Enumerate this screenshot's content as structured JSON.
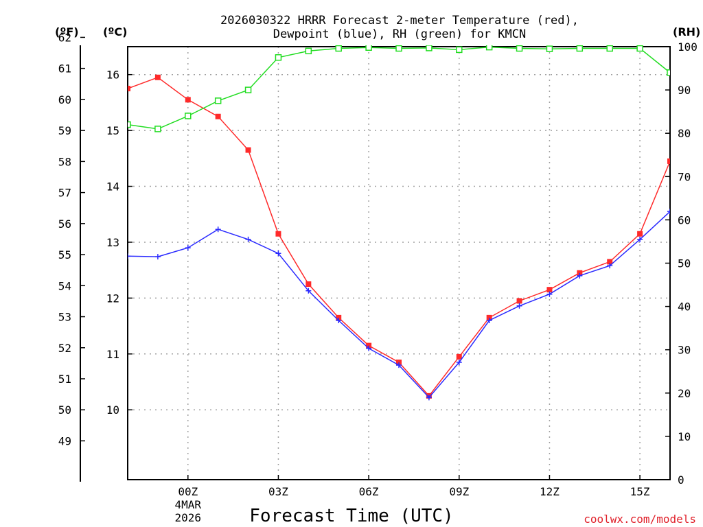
{
  "chart_data": {
    "type": "line",
    "title": [
      "2026030322 HRRR Forecast 2-meter Temperature (red),",
      "Dewpoint (blue), RH (green) for KMCN"
    ],
    "xlabel": "Forecast Time (UTC)",
    "x_hours": [
      -2,
      -1,
      0,
      1,
      2,
      3,
      4,
      5,
      6,
      7,
      8,
      9,
      10,
      11,
      12,
      13,
      14,
      15,
      16
    ],
    "x_ticks": [
      {
        "hour": 0,
        "label": "00Z",
        "sub1": "4MAR",
        "sub2": "2026"
      },
      {
        "hour": 3,
        "label": "03Z"
      },
      {
        "hour": 6,
        "label": "06Z"
      },
      {
        "hour": 9,
        "label": "09Z"
      },
      {
        "hour": 12,
        "label": "12Z"
      },
      {
        "hour": 15,
        "label": "15Z"
      }
    ],
    "xlim": [
      -2,
      16
    ],
    "axes": {
      "fahrenheit": {
        "unit_label": "(ºF)",
        "ticks": [
          49,
          50,
          51,
          52,
          53,
          54,
          55,
          56,
          57,
          58,
          59,
          60,
          61,
          62
        ]
      },
      "celsius": {
        "unit_label": "(ºC)",
        "ylim": [
          8.75,
          16.5
        ],
        "ticks": [
          10,
          11,
          12,
          13,
          14,
          15,
          16
        ]
      },
      "rh": {
        "unit_label": "(RH)",
        "ylim": [
          0,
          100
        ],
        "ticks": [
          0,
          10,
          20,
          30,
          40,
          50,
          60,
          70,
          80,
          90,
          100
        ]
      }
    },
    "series": [
      {
        "name": "Temperature",
        "unit": "C",
        "color": "#ff2a2a",
        "values": [
          15.75,
          15.95,
          15.55,
          15.25,
          14.65,
          13.15,
          12.25,
          11.65,
          11.15,
          10.85,
          10.25,
          10.95,
          11.65,
          11.95,
          12.15,
          12.45,
          12.65,
          13.15,
          14.45
        ]
      },
      {
        "name": "Dewpoint",
        "unit": "C",
        "color": "#2a2aff",
        "values": [
          12.75,
          12.74,
          12.9,
          13.23,
          13.05,
          12.8,
          12.13,
          11.6,
          11.1,
          10.8,
          10.22,
          10.85,
          11.6,
          11.86,
          12.07,
          12.4,
          12.58,
          13.05,
          13.55
        ]
      },
      {
        "name": "RH",
        "unit": "%",
        "color": "#22dd22",
        "values": [
          82,
          81,
          84,
          87.5,
          90,
          97.5,
          99,
          99.6,
          99.8,
          99.6,
          99.7,
          99.3,
          99.9,
          99.6,
          99.5,
          99.6,
          99.6,
          99.6,
          94
        ]
      }
    ]
  },
  "credit": "coolwx.com/models",
  "colors": {
    "grid": "#a0a0a0",
    "axis": "#000000"
  }
}
